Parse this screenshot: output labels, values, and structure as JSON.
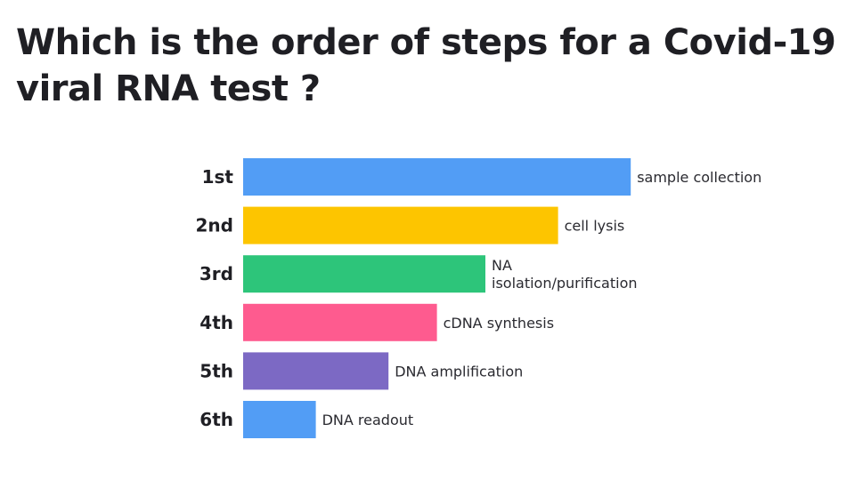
{
  "chart_data": {
    "type": "bar",
    "orientation": "horizontal",
    "title": "Which is the order of steps for a Covid-19 viral RNA test ?",
    "categories": [
      "1st",
      "2nd",
      "3rd",
      "4th",
      "5th",
      "6th"
    ],
    "values": [
      16,
      13,
      10,
      8,
      6,
      3
    ],
    "data_labels": [
      [
        "sample collection"
      ],
      [
        "cell lysis"
      ],
      [
        "NA",
        "isolation/purification"
      ],
      [
        "cDNA synthesis"
      ],
      [
        "DNA amplification"
      ],
      [
        "DNA readout"
      ]
    ],
    "colors": [
      "#529df5",
      "#fdc500",
      "#2dc57a",
      "#fe5b8f",
      "#7c69c4",
      "#529df5"
    ],
    "xlabel": "",
    "ylabel": "",
    "grid": false,
    "legend": "none"
  }
}
